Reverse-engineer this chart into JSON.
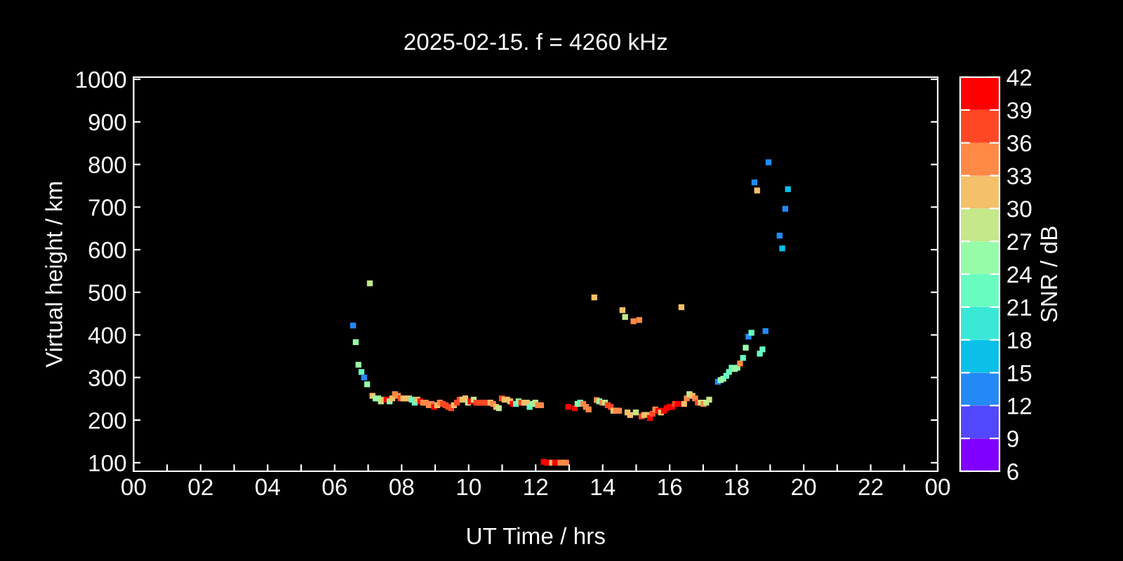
{
  "chart_data": {
    "type": "scatter",
    "title": "2025-02-15. f = 4260 kHz",
    "xlabel": "UT Time / hrs",
    "ylabel": "Virtual height / km",
    "clabel": "SNR / dB",
    "xlim": [
      0,
      24
    ],
    "xticks": [
      {
        "value": 0,
        "label": "00"
      },
      {
        "value": 1,
        "label": null
      },
      {
        "value": 2,
        "label": "02"
      },
      {
        "value": 3,
        "label": null
      },
      {
        "value": 4,
        "label": "04"
      },
      {
        "value": 5,
        "label": null
      },
      {
        "value": 6,
        "label": "06"
      },
      {
        "value": 7,
        "label": null
      },
      {
        "value": 8,
        "label": "08"
      },
      {
        "value": 9,
        "label": null
      },
      {
        "value": 10,
        "label": "10"
      },
      {
        "value": 11,
        "label": null
      },
      {
        "value": 12,
        "label": "12"
      },
      {
        "value": 13,
        "label": null
      },
      {
        "value": 14,
        "label": "14"
      },
      {
        "value": 15,
        "label": null
      },
      {
        "value": 16,
        "label": "16"
      },
      {
        "value": 17,
        "label": null
      },
      {
        "value": 18,
        "label": "18"
      },
      {
        "value": 19,
        "label": null
      },
      {
        "value": 20,
        "label": "20"
      },
      {
        "value": 21,
        "label": null
      },
      {
        "value": 22,
        "label": "22"
      },
      {
        "value": 23,
        "label": null
      },
      {
        "value": 24,
        "label": "00"
      }
    ],
    "ylim": [
      80,
      1005
    ],
    "yticks": [
      100,
      200,
      300,
      400,
      500,
      600,
      700,
      800,
      900,
      1000
    ],
    "clim": [
      6,
      42
    ],
    "cticks": [
      6,
      9,
      12,
      15,
      18,
      21,
      24,
      27,
      30,
      33,
      36,
      39,
      42
    ],
    "marker": "square",
    "grid": false,
    "legend": false,
    "x": [
      7.05,
      6.55,
      6.63,
      6.71,
      6.8,
      6.88,
      6.97,
      7.13,
      7.22,
      7.3,
      7.38,
      7.47,
      7.55,
      7.64,
      7.72,
      7.8,
      7.89,
      7.97,
      8.05,
      8.14,
      8.22,
      8.3,
      8.39,
      8.47,
      8.56,
      8.64,
      8.72,
      8.81,
      8.89,
      8.97,
      9.06,
      9.14,
      9.23,
      9.31,
      9.39,
      9.48,
      9.56,
      9.65,
      9.73,
      9.81,
      9.9,
      9.98,
      10.06,
      10.15,
      10.23,
      10.32,
      10.4,
      10.48,
      10.57,
      10.65,
      10.73,
      10.82,
      10.9,
      10.99,
      11.07,
      11.15,
      11.24,
      11.32,
      11.41,
      11.49,
      11.57,
      11.66,
      11.74,
      11.82,
      11.91,
      11.99,
      12.07,
      12.16,
      12.24,
      12.33,
      12.41,
      12.49,
      12.58,
      12.66,
      12.74,
      12.83,
      12.91,
      12.97,
      13.17,
      13.25,
      13.33,
      13.42,
      13.5,
      13.58,
      13.75,
      14.59,
      14.67,
      14.92,
      15.09,
      16.35,
      13.82,
      13.9,
      13.99,
      14.07,
      14.15,
      14.24,
      14.32,
      14.4,
      14.49,
      14.74,
      14.82,
      14.99,
      15.16,
      15.24,
      15.32,
      15.41,
      15.49,
      15.57,
      15.66,
      15.74,
      15.83,
      15.91,
      15.99,
      16.08,
      16.16,
      16.24,
      16.43,
      16.51,
      16.59,
      16.68,
      16.76,
      16.84,
      16.93,
      17.01,
      17.09,
      17.18,
      17.44,
      17.52,
      17.6,
      17.69,
      17.77,
      17.85,
      17.94,
      18.02,
      18.1,
      18.19,
      18.27,
      18.35,
      18.44,
      18.69,
      18.77,
      18.86,
      18.95,
      18.53,
      18.61,
      19.53,
      19.45,
      19.28,
      19.36
    ],
    "values": [
      521,
      422,
      383,
      330,
      313,
      300,
      284,
      257,
      251,
      251,
      244,
      248,
      248,
      244,
      251,
      261,
      257,
      251,
      251,
      251,
      251,
      248,
      241,
      248,
      244,
      241,
      241,
      235,
      238,
      231,
      235,
      241,
      238,
      235,
      231,
      228,
      235,
      241,
      248,
      248,
      251,
      241,
      244,
      248,
      241,
      241,
      241,
      241,
      241,
      241,
      238,
      231,
      228,
      251,
      248,
      248,
      244,
      238,
      238,
      244,
      241,
      241,
      241,
      231,
      238,
      241,
      235,
      235,
      102,
      100,
      100,
      100,
      100,
      100,
      100,
      100,
      100,
      231,
      228,
      238,
      241,
      238,
      231,
      225,
      488,
      458,
      442,
      432,
      435,
      465,
      247,
      244,
      241,
      241,
      235,
      231,
      222,
      222,
      222,
      218,
      212,
      218,
      209,
      212,
      212,
      205,
      215,
      225,
      222,
      218,
      222,
      228,
      231,
      231,
      238,
      238,
      238,
      251,
      261,
      257,
      251,
      241,
      241,
      238,
      241,
      248,
      290,
      294,
      297,
      304,
      313,
      323,
      320,
      323,
      333,
      346,
      370,
      396,
      405,
      356,
      366,
      409,
      805,
      758,
      739,
      742,
      696,
      633,
      603
    ],
    "cvalues": [
      27,
      13,
      25,
      25,
      22,
      13,
      24,
      32,
      25,
      26,
      27,
      32,
      40,
      25,
      32,
      35,
      34,
      38,
      32,
      32,
      32,
      21,
      22,
      32,
      39,
      35,
      35,
      35,
      35,
      40,
      32,
      35,
      38,
      38,
      36,
      36,
      32,
      38,
      38,
      32,
      32,
      27,
      40,
      27,
      36,
      36,
      36,
      36,
      36,
      32,
      34,
      32,
      28,
      36,
      32,
      32,
      32,
      40,
      21,
      24,
      38,
      32,
      32,
      21,
      24,
      27,
      35,
      35,
      40,
      40,
      40,
      32,
      40,
      40,
      35,
      35,
      35,
      40,
      40,
      25,
      21,
      33,
      35,
      35,
      31,
      31,
      28,
      35,
      35,
      31,
      35,
      25,
      35,
      27,
      38,
      36,
      32,
      35,
      35,
      32,
      32,
      28,
      38,
      32,
      32,
      40,
      38,
      33,
      40,
      32,
      40,
      40,
      40,
      40,
      36,
      40,
      32,
      35,
      27,
      32,
      35,
      38,
      27,
      33,
      28,
      27,
      13,
      25,
      24,
      21,
      23,
      21,
      24,
      24,
      35,
      22,
      24,
      13,
      23,
      23,
      23,
      13,
      13,
      13,
      31,
      16,
      13,
      13,
      16
    ]
  }
}
